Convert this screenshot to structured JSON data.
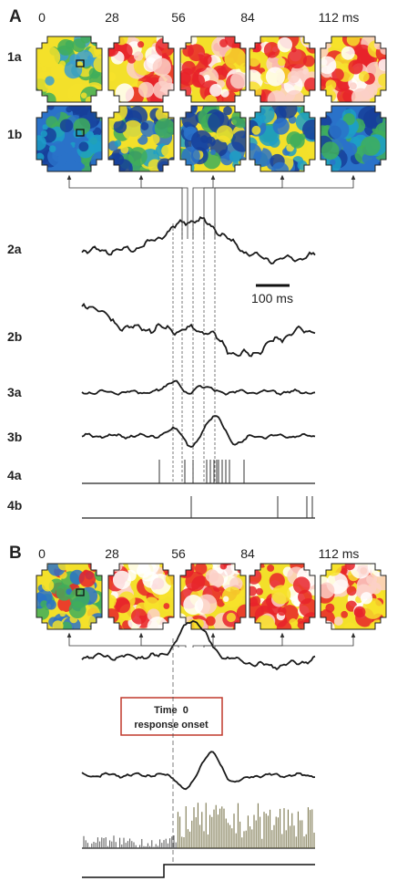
{
  "panel_a": {
    "label": "A",
    "times": [
      "0",
      "28",
      "56",
      "84",
      "112 ms"
    ],
    "rows": [
      "1a",
      "1b",
      "2a",
      "2b",
      "3a",
      "3b",
      "4a",
      "4b"
    ],
    "scale_bar": "100 ms"
  },
  "panel_b": {
    "label": "B",
    "times": [
      "0",
      "28",
      "56",
      "84",
      "112 ms"
    ],
    "annotation": {
      "line1": "Time  0",
      "line2": "response onset"
    }
  }
}
